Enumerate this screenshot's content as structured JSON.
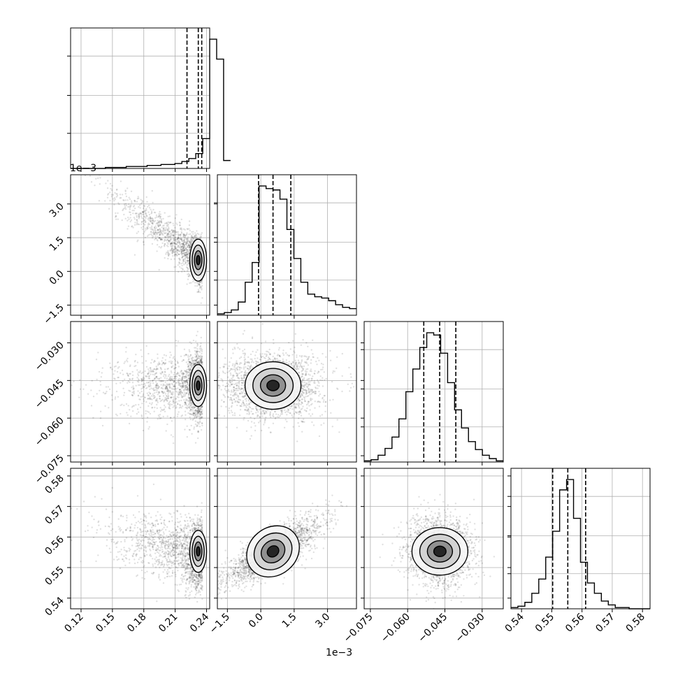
{
  "chart_data": {
    "type": "corner",
    "grid": true,
    "parameters": [
      {
        "range": [
          0.11,
          0.243
        ],
        "ticks": [
          0.12,
          0.15,
          0.18,
          0.21,
          0.24
        ],
        "tick_labels": [
          "0.12",
          "0.15",
          "0.18",
          "0.21",
          "0.24"
        ],
        "offset_text": ""
      },
      {
        "range": [
          -1.95,
          4.3
        ],
        "ticks": [
          -1.5,
          0.0,
          1.5,
          3.0
        ],
        "tick_labels": [
          "−1.5",
          "0.0",
          "1.5",
          "3.0"
        ],
        "offset_text": "1e−3"
      },
      {
        "range": [
          -0.0775,
          -0.0215
        ],
        "ticks": [
          -0.075,
          -0.06,
          -0.045,
          -0.03
        ],
        "tick_labels": [
          "−0.075",
          "−0.060",
          "−0.045",
          "−0.030"
        ],
        "offset_text": ""
      },
      {
        "range": [
          0.5365,
          0.5825
        ],
        "ticks": [
          0.54,
          0.55,
          0.56,
          0.57,
          0.58
        ],
        "tick_labels": [
          "0.54",
          "0.55",
          "0.56",
          "0.57",
          "0.58"
        ],
        "offset_text": ""
      }
    ],
    "diagonal": [
      {
        "quantiles": [
          0.2213,
          0.2321,
          0.2354
        ],
        "hist_edges_start": 0.11,
        "hist_edges_step": 0.00665,
        "hist_counts": [
          0,
          0,
          0,
          0,
          0,
          1,
          1,
          1,
          2,
          2,
          2,
          3,
          3,
          4,
          4,
          5,
          7,
          10,
          15,
          30,
          130,
          110,
          8
        ]
      },
      {
        "quantiles": [
          -0.1,
          0.55,
          1.35
        ],
        "hist_edges_start": -1.95,
        "hist_edges_step": 0.3125,
        "hist_counts": [
          1,
          2,
          4,
          10,
          25,
          40,
          98,
          96,
          95,
          88,
          65,
          43,
          25,
          16,
          14,
          13,
          11,
          8,
          6,
          5
        ]
      },
      {
        "quantiles": [
          -0.0535,
          -0.0471,
          -0.0406
        ],
        "hist_edges_start": -0.0775,
        "hist_edges_step": 0.0028,
        "hist_counts": [
          1,
          2,
          6,
          12,
          22,
          38,
          62,
          82,
          101,
          114,
          112,
          96,
          70,
          46,
          30,
          18,
          11,
          6,
          3,
          1
        ]
      },
      {
        "quantiles": [
          0.5503,
          0.5553,
          0.5612
        ],
        "hist_edges_start": 0.5365,
        "hist_edges_step": 0.0023,
        "hist_counts": [
          1,
          2,
          5,
          12,
          23,
          40,
          60,
          92,
          100,
          70,
          36,
          20,
          12,
          6,
          3,
          1,
          1,
          0,
          0,
          0
        ]
      }
    ],
    "scatter": [
      {
        "row": 1,
        "col": 0,
        "center": [
          0.232,
          0.5
        ],
        "spread": [
          0.025,
          1.2
        ],
        "correlation": -0.8,
        "points": 2200
      },
      {
        "row": 2,
        "col": 0,
        "center": [
          0.232,
          -0.047
        ],
        "spread": [
          0.025,
          0.0065
        ],
        "correlation": 0.0,
        "points": 2200
      },
      {
        "row": 2,
        "col": 1,
        "center": [
          0.55,
          -0.047
        ],
        "spread": [
          1.1,
          0.0065
        ],
        "correlation": 0.0,
        "points": 2200
      },
      {
        "row": 3,
        "col": 0,
        "center": [
          0.232,
          0.5553
        ],
        "spread": [
          0.025,
          0.0055
        ],
        "correlation": -0.4,
        "points": 2200
      },
      {
        "row": 3,
        "col": 1,
        "center": [
          0.55,
          0.5553
        ],
        "spread": [
          1.1,
          0.0055
        ],
        "correlation": 0.82,
        "points": 2200
      },
      {
        "row": 3,
        "col": 2,
        "center": [
          -0.047,
          0.5553
        ],
        "spread": [
          0.0065,
          0.0055
        ],
        "correlation": 0.0,
        "points": 2200
      }
    ],
    "offset_texts": {
      "top_left": "1e−3",
      "bottom": "1e−3"
    },
    "colors": {
      "points": "#000000",
      "line": "#000000",
      "grid": "#b0b0b0"
    }
  }
}
